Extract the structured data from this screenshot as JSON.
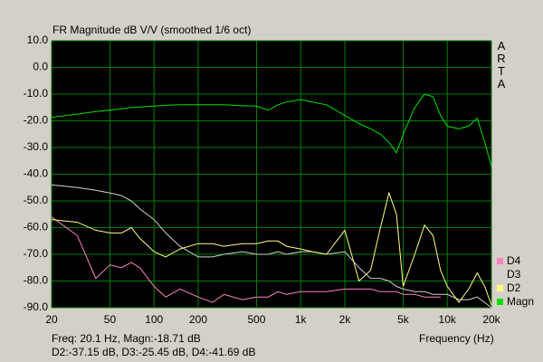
{
  "chart_data": {
    "type": "line",
    "title": "FR Magnitude dB V/V (smoothed 1/6 oct)",
    "x_label": "Frequency (Hz)",
    "brand": "ARTA",
    "readout": [
      "Freq: 20.1 Hz, Magn:-18.71 dB",
      "D2:-37.15 dB, D3:-25.45 dB, D4:-41.69 dB"
    ],
    "x_log": true,
    "grid": true,
    "xlim": [
      20,
      20000
    ],
    "ylim": [
      -90,
      10
    ],
    "xticks": [
      20,
      50,
      100,
      200,
      500,
      {
        "value": 1000,
        "label": "1k"
      },
      {
        "value": 2000,
        "label": "2k"
      },
      {
        "value": 5000,
        "label": "5k"
      },
      {
        "value": 10000,
        "label": "10k"
      },
      {
        "value": 20000,
        "label": "20k"
      }
    ],
    "yticks": [
      {
        "value": 10,
        "label": "10.0"
      },
      {
        "value": 0,
        "label": "0.0"
      },
      {
        "value": -10,
        "label": "-10.0"
      },
      {
        "value": -20,
        "label": "-20.0"
      },
      {
        "value": -30,
        "label": "-30.0"
      },
      {
        "value": -40,
        "label": "-40.0"
      },
      {
        "value": -50,
        "label": "-50.0"
      },
      {
        "value": -60,
        "label": "-60.0"
      },
      {
        "value": -70,
        "label": "-70.0"
      },
      {
        "value": -80,
        "label": "-80.0"
      },
      {
        "value": -90,
        "label": "-90.0"
      }
    ],
    "x": [
      20,
      30,
      40,
      50,
      60,
      70,
      80,
      100,
      120,
      150,
      200,
      250,
      300,
      400,
      500,
      600,
      700,
      800,
      1000,
      1200,
      1500,
      2000,
      2500,
      3000,
      3500,
      4000,
      4500,
      5000,
      6000,
      7000,
      8000,
      9000,
      10000,
      12000,
      14000,
      16000,
      18000,
      20000
    ],
    "series": [
      {
        "name": "D4",
        "color": "#ff80c0",
        "values": [
          -56,
          -63,
          -79,
          -74,
          -75,
          -73,
          -75,
          -82,
          -86,
          -83,
          -86,
          -88,
          -85,
          -87,
          -86,
          -86,
          -84,
          -85,
          -84,
          -84,
          -84,
          -83,
          -83,
          -83,
          -84,
          -84,
          -84,
          -85,
          -85,
          -86,
          -86,
          -86,
          null,
          null,
          null,
          null,
          null,
          null
        ]
      },
      {
        "name": "D3",
        "color": "#d0d0d0",
        "values": [
          -44,
          -45,
          -46,
          -47,
          -48,
          -50,
          -53,
          -57,
          -62,
          -67,
          -71,
          -71,
          -70,
          -69,
          -70,
          -70,
          -69,
          -70,
          -69,
          -69,
          -70,
          -69,
          -75,
          -79,
          -79,
          -80,
          -82,
          -83,
          -84,
          -84,
          -85,
          -85,
          -85,
          -87,
          -87,
          -86,
          -88,
          -90
        ]
      },
      {
        "name": "D2",
        "color": "#ffff80",
        "values": [
          -57,
          -58,
          -61,
          -62,
          -62,
          -60,
          -64,
          -69,
          -71,
          -68,
          -66,
          -66,
          -67,
          -66,
          -66,
          -65,
          -65,
          -67,
          -68,
          -69,
          -70,
          -61,
          -80,
          -76,
          -60,
          -47,
          -55,
          -82,
          -70,
          -59,
          -63,
          -76,
          -82,
          -88,
          -83,
          -77,
          -82,
          -89
        ]
      },
      {
        "name": "Magn",
        "color": "#00e000",
        "values": [
          -18.7,
          -17.5,
          -16.5,
          -16,
          -15.5,
          -15,
          -14.8,
          -14.5,
          -14.2,
          -14,
          -14,
          -14,
          -14,
          -14.3,
          -14.5,
          -16,
          -14,
          -13,
          -12,
          -13,
          -14,
          -18,
          -21,
          -23,
          -25,
          -28,
          -32,
          -25,
          -15,
          -10,
          -11,
          -18,
          -22,
          -23,
          -22,
          -19,
          -28,
          -37
        ]
      }
    ]
  }
}
